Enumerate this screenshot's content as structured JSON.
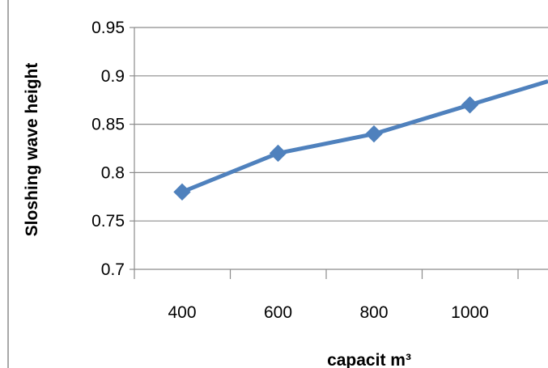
{
  "chart_data": {
    "type": "line",
    "title": "",
    "xlabel": "capacit m³",
    "ylabel": "Sloshing wave height",
    "x": [
      400,
      600,
      800,
      1000
    ],
    "series": [
      {
        "values": [
          0.78,
          0.82,
          0.84,
          0.87
        ],
        "color": "#4F81BD",
        "marker": "diamond"
      }
    ],
    "xticks": [
      "400",
      "600",
      "800",
      "1000"
    ],
    "yticks": [
      "0.95",
      "0.9",
      "0.85",
      "0.8",
      "0.75",
      "0.7"
    ],
    "ylim": [
      0.7,
      0.95
    ],
    "grid": "horizontal",
    "legend": "none"
  }
}
